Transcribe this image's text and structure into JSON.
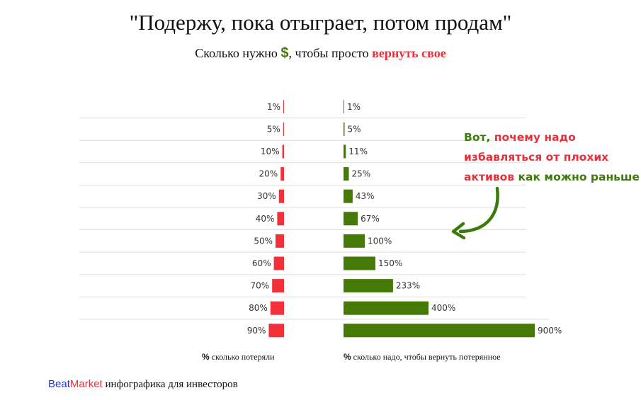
{
  "header": {
    "title": "\"Подержу, пока отыграет, потом продам\"",
    "subtitle_part1": "Сколько нужно ",
    "subtitle_dollar": "$",
    "subtitle_part2": ", чтобы просто ",
    "subtitle_highlight": "вернуть свое"
  },
  "annotation": {
    "line1_a": "Вот, ",
    "line1_b": "почему надо",
    "line2": "избавляться от плохих",
    "line3_a": "активов ",
    "line3_b": "как можно раньше"
  },
  "footer": {
    "brand_beat": "Beat",
    "brand_market": "Market",
    "tagline": " инфографика для инвесторов"
  },
  "colors": {
    "loss": "#f2303a",
    "gain": "#457a07",
    "accent_red": "#e8303a",
    "accent_green": "#3d7a0c"
  },
  "chart_data": {
    "type": "bar",
    "categories": [
      "1%",
      "5%",
      "10%",
      "20%",
      "30%",
      "40%",
      "50%",
      "60%",
      "70%",
      "80%",
      "90%"
    ],
    "series": [
      {
        "values": [
          1,
          5,
          10,
          20,
          30,
          40,
          50,
          60,
          70,
          80,
          90
        ]
      },
      {
        "values": [
          1,
          5,
          11,
          25,
          43,
          67,
          100,
          150,
          233,
          400,
          900
        ]
      }
    ],
    "gain_labels": [
      "1%",
      "5%",
      "11%",
      "25%",
      "43%",
      "67%",
      "100%",
      "150%",
      "233%",
      "400%",
      "900%"
    ],
    "xlabel_left": "сколько потеряли",
    "xlabel_right": "сколько надо, чтобы вернуть потерянное",
    "xlabel_prefix": "%"
  }
}
